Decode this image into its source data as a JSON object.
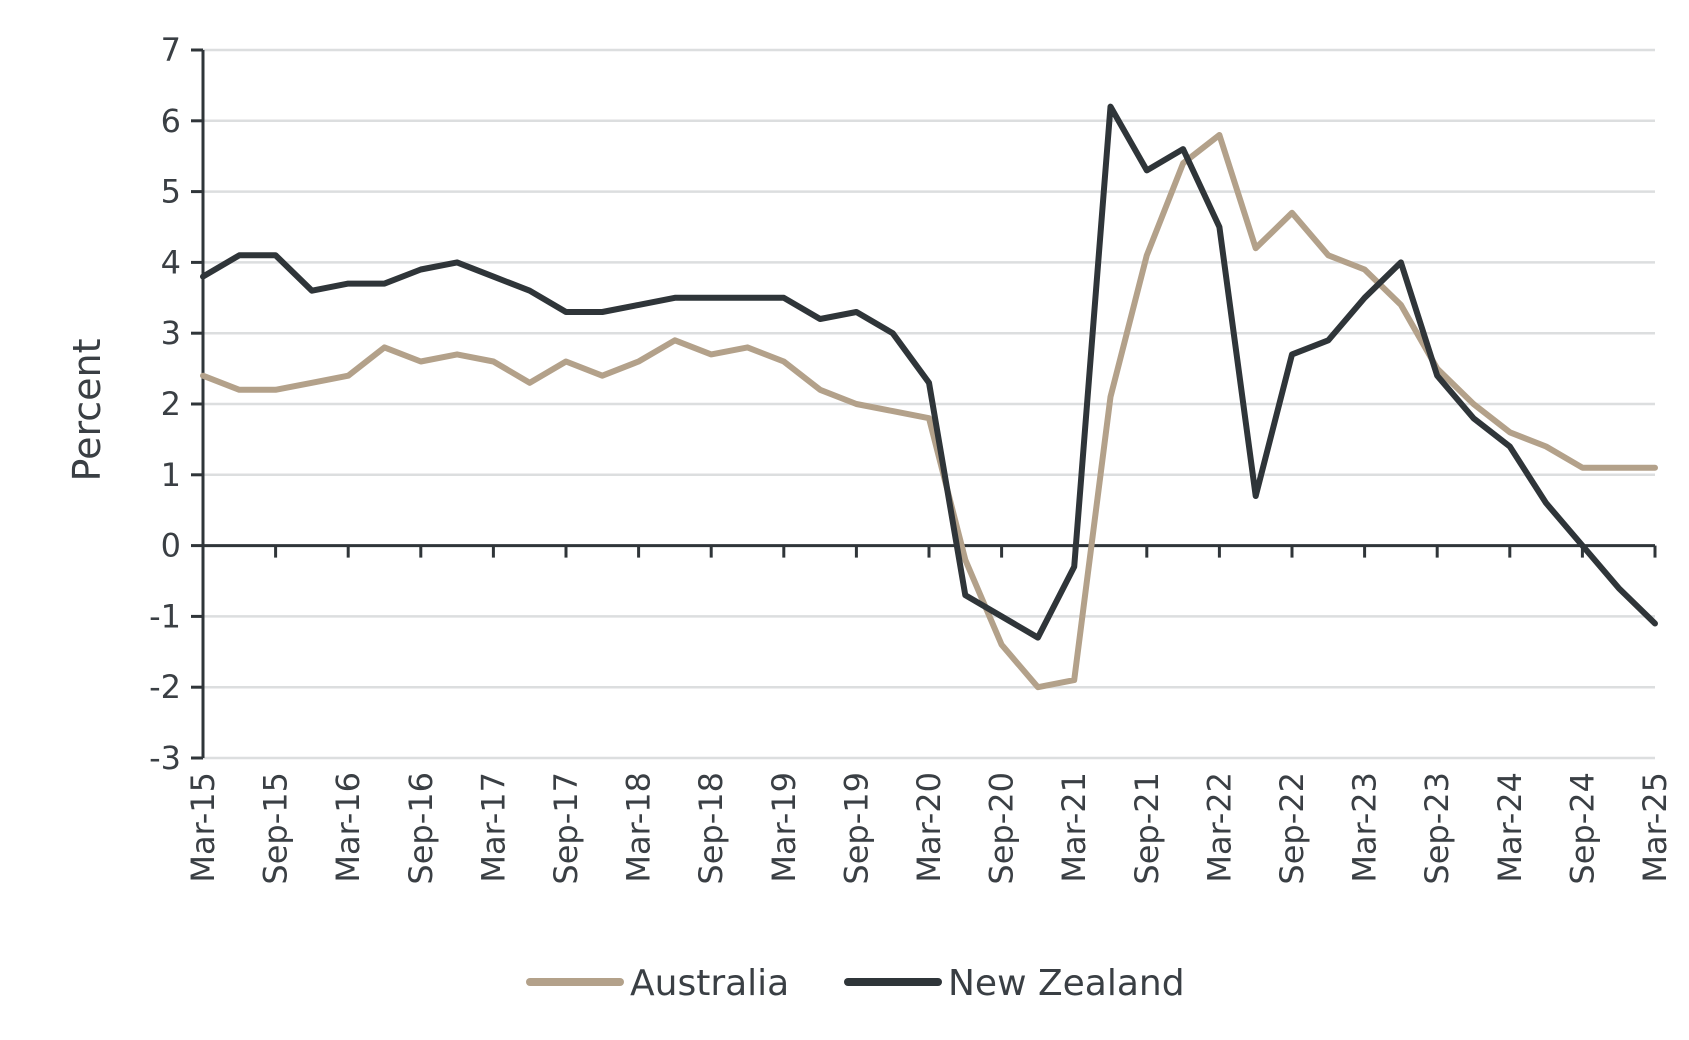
{
  "chart_data": {
    "type": "line",
    "ylabel": "Percent",
    "ylim": [
      -3,
      7
    ],
    "yticks": [
      "-3",
      "-2",
      "-1",
      "0",
      "1",
      "2",
      "3",
      "4",
      "5",
      "6",
      "7"
    ],
    "x": [
      "Mar-15",
      "Jun-15",
      "Sep-15",
      "Dec-15",
      "Mar-16",
      "Jun-16",
      "Sep-16",
      "Dec-16",
      "Mar-17",
      "Jun-17",
      "Sep-17",
      "Dec-17",
      "Mar-18",
      "Jun-18",
      "Sep-18",
      "Dec-18",
      "Mar-19",
      "Jun-19",
      "Sep-19",
      "Dec-19",
      "Mar-20",
      "Jun-20",
      "Sep-20",
      "Dec-20",
      "Mar-21",
      "Jun-21",
      "Sep-21",
      "Dec-21",
      "Mar-22",
      "Jun-22",
      "Sep-22",
      "Dec-22",
      "Mar-23",
      "Jun-23",
      "Sep-23",
      "Dec-23",
      "Mar-24",
      "Jun-24",
      "Sep-24",
      "Dec-24",
      "Mar-25"
    ],
    "xtick_labels": [
      "Mar-15",
      "Sep-15",
      "Mar-16",
      "Sep-16",
      "Mar-17",
      "Sep-17",
      "Mar-18",
      "Sep-18",
      "Mar-19",
      "Sep-19",
      "Mar-20",
      "Sep-20",
      "Mar-21",
      "Sep-21",
      "Mar-22",
      "Sep-22",
      "Mar-23",
      "Sep-23",
      "Mar-24",
      "Sep-24",
      "Mar-25"
    ],
    "grid": true,
    "legend_position": "bottom-center",
    "series": [
      {
        "name": "Australia",
        "color": "#b3a18a",
        "values": [
          2.4,
          2.2,
          2.2,
          2.3,
          2.4,
          2.8,
          2.6,
          2.7,
          2.6,
          2.3,
          2.6,
          2.4,
          2.6,
          2.9,
          2.7,
          2.8,
          2.6,
          2.2,
          2.0,
          1.9,
          1.8,
          -0.2,
          -1.4,
          -2.0,
          -1.9,
          2.1,
          4.1,
          5.4,
          5.8,
          4.2,
          4.7,
          4.1,
          3.9,
          3.4,
          2.5,
          2.0,
          1.6,
          1.4,
          1.1,
          1.1,
          1.1
        ]
      },
      {
        "name": "New Zealand",
        "color": "#2f3539",
        "values": [
          3.8,
          4.1,
          4.1,
          3.6,
          3.7,
          3.7,
          3.9,
          4.0,
          3.8,
          3.6,
          3.3,
          3.3,
          3.4,
          3.5,
          3.5,
          3.5,
          3.5,
          3.2,
          3.3,
          3.0,
          2.3,
          -0.7,
          -1.0,
          -1.3,
          -0.3,
          6.2,
          5.3,
          5.6,
          4.5,
          0.7,
          2.7,
          2.9,
          3.5,
          4.0,
          2.4,
          1.8,
          1.4,
          0.6,
          0.0,
          -0.6,
          -1.1
        ]
      }
    ]
  }
}
